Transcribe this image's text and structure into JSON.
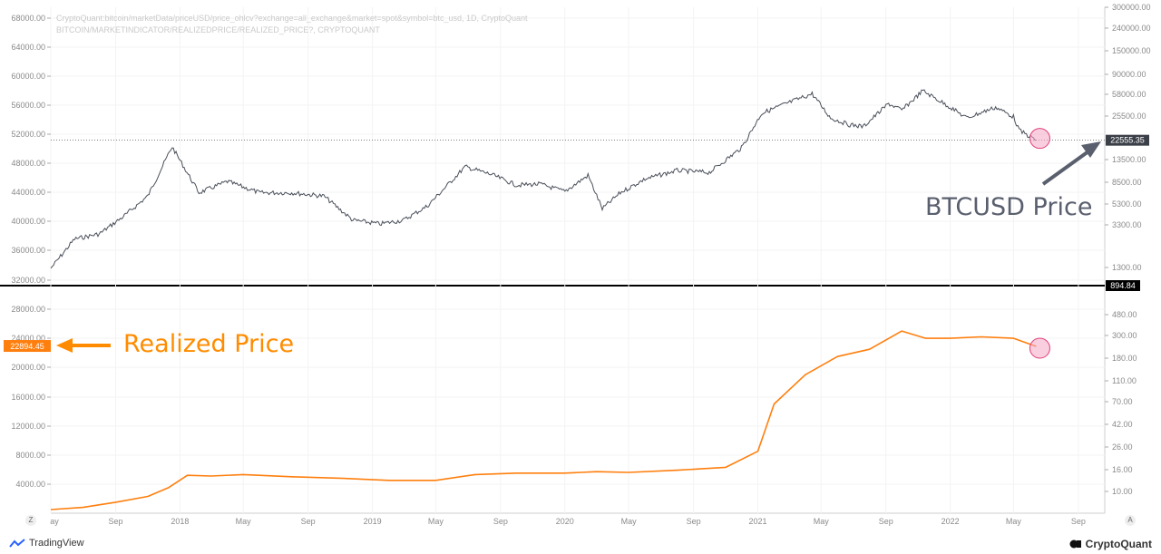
{
  "source_lines": {
    "line1": "CryptoQuant:bitcoin/marketData/priceUSD/price_ohlcv?exchange=all_exchange&market=spot&symbol=btc_usd, 1D, CryptoQuant",
    "line2": "BITCOIN/MARKETINDICATOR/REALIZEDPRICE/REALIZED_PRICE?, CRYPTOQUANT"
  },
  "annotations": {
    "price_label": "BTCUSD Price",
    "realized_label": "Realized Price"
  },
  "colors": {
    "price_line": "#4a4f5a",
    "realized_line": "#ff7f0e",
    "annotation_grey": "#5a5f6e",
    "annotation_orange": "#ff8c00",
    "highlight_circle": "#f4a6c4"
  },
  "footer": {
    "left": "TradingView",
    "right": "CryptoQuant",
    "left_icon": "tradingview-logo-icon",
    "right_icon": "cryptoquant-logo-icon",
    "corner_left": "Z",
    "corner_right": "A"
  },
  "chart_data": {
    "type": "line",
    "x_tick_labels": [
      "ay",
      "Sep",
      "2018",
      "May",
      "Sep",
      "2019",
      "May",
      "Sep",
      "2020",
      "May",
      "Sep",
      "2021",
      "May",
      "Sep",
      "2022",
      "May",
      "Sep"
    ],
    "left_axis_ticks": [
      "68000.00",
      "64000.00",
      "60000.00",
      "56000.00",
      "52000.00",
      "48000.00",
      "44000.00",
      "40000.00",
      "36000.00",
      "32000.00",
      "28000.00",
      "24000.00",
      "20000.00",
      "16000.00",
      "12000.00",
      "8000.00",
      "4000.00"
    ],
    "right_axis_ticks": [
      "300000.00",
      "240000.00",
      "150000.00",
      "90000.00",
      "58000.00",
      "25500.00",
      "13500.00",
      "8500.00",
      "5300.00",
      "3300.00",
      "1300.00",
      "480.00",
      "300.00",
      "180.00",
      "110.00",
      "70.00",
      "42.00",
      "26.00",
      "16.00",
      "10.00"
    ],
    "current_labels": {
      "price": "22555.35",
      "divider": "894.84",
      "realized": "22894.45"
    },
    "series": [
      {
        "name": "BTCUSD Price",
        "pane": "top",
        "scale": "log",
        "x": [
          "2017-05-01",
          "2017-06-15",
          "2017-08-01",
          "2017-09-15",
          "2017-11-01",
          "2017-12-17",
          "2018-02-06",
          "2018-04-01",
          "2018-06-01",
          "2018-08-01",
          "2018-10-01",
          "2018-11-25",
          "2019-01-15",
          "2019-03-01",
          "2019-04-15",
          "2019-06-26",
          "2019-08-15",
          "2019-10-01",
          "2019-11-15",
          "2020-01-01",
          "2020-02-14",
          "2020-03-12",
          "2020-04-15",
          "2020-06-01",
          "2020-08-01",
          "2020-10-01",
          "2020-12-01",
          "2021-01-08",
          "2021-02-15",
          "2021-04-14",
          "2021-05-19",
          "2021-06-22",
          "2021-07-20",
          "2021-09-06",
          "2021-10-01",
          "2021-11-10",
          "2022-01-01",
          "2022-02-01",
          "2022-03-28",
          "2022-05-01",
          "2022-05-12",
          "2022-06-13"
        ],
        "y": [
          1300,
          2500,
          2800,
          4100,
          6500,
          19500,
          7000,
          9000,
          7000,
          7000,
          6500,
          3800,
          3500,
          3800,
          5200,
          12500,
          10500,
          8300,
          8500,
          7200,
          10300,
          4900,
          7000,
          9500,
          11500,
          11000,
          19000,
          41000,
          49000,
          63500,
          37000,
          32000,
          30500,
          51000,
          44000,
          68000,
          47000,
          37000,
          47000,
          38000,
          28000,
          22555
        ]
      },
      {
        "name": "Realized Price",
        "pane": "bottom",
        "scale": "linear",
        "x": [
          "2017-05-01",
          "2017-07-01",
          "2017-09-01",
          "2017-11-01",
          "2017-12-10",
          "2018-01-15",
          "2018-03-01",
          "2018-05-01",
          "2018-08-01",
          "2018-11-01",
          "2019-02-01",
          "2019-05-01",
          "2019-07-15",
          "2019-10-01",
          "2020-01-01",
          "2020-03-01",
          "2020-05-01",
          "2020-08-01",
          "2020-11-01",
          "2021-01-01",
          "2021-02-01",
          "2021-04-01",
          "2021-06-01",
          "2021-08-01",
          "2021-10-01",
          "2021-11-15",
          "2022-01-01",
          "2022-03-01",
          "2022-05-01",
          "2022-06-13"
        ],
        "y": [
          500,
          800,
          1500,
          2300,
          3500,
          5200,
          5100,
          5300,
          5000,
          4800,
          4500,
          4500,
          5300,
          5500,
          5500,
          5700,
          5600,
          5900,
          6300,
          8500,
          15000,
          19000,
          21500,
          22500,
          25000,
          24000,
          24000,
          24200,
          24000,
          22894
        ]
      }
    ]
  }
}
